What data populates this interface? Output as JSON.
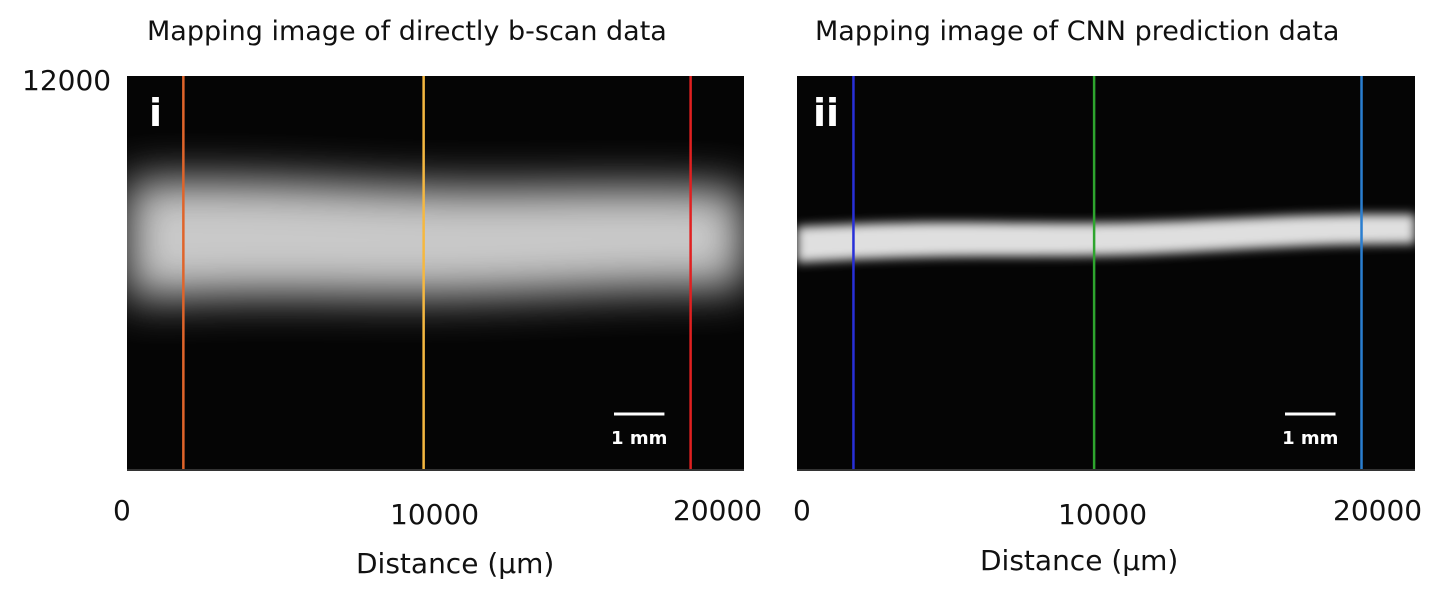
{
  "chart_data": [
    {
      "type": "heatmap",
      "title": "Mapping image of directly b-scan data",
      "panel_label": "i",
      "xlabel": "Distance (μm)",
      "ylabel": "",
      "x_ticks": [
        "0",
        "10000",
        "20000"
      ],
      "y_ticks": [
        "12000"
      ],
      "xlim": [
        0,
        20800
      ],
      "ylim": [
        0,
        12000
      ],
      "scale_bar_label": "1 mm",
      "scale_bar_length_um": 1000,
      "band": {
        "center_y": 7000,
        "half_width_start": 1800,
        "half_width_end": 1500,
        "peak_intensity": 0.95
      },
      "markers": [
        {
          "x": 1900,
          "color": "#e0642a"
        },
        {
          "x": 10000,
          "color": "#f5b840"
        },
        {
          "x": 19000,
          "color": "#e02020"
        }
      ]
    },
    {
      "type": "heatmap",
      "title": "Mapping image of CNN prediction data",
      "panel_label": "ii",
      "xlabel": "Distance (μm)",
      "ylabel": "",
      "x_ticks": [
        "0",
        "10000",
        "20000"
      ],
      "y_ticks": [],
      "xlim": [
        0,
        20800
      ],
      "ylim": [
        0,
        12000
      ],
      "scale_bar_label": "1 mm",
      "scale_bar_length_um": 1000,
      "band": {
        "center_y_start": 6850,
        "center_y_end": 7300,
        "half_width_start": 550,
        "half_width_end": 450,
        "peak_intensity": 1.0
      },
      "markers": [
        {
          "x": 1900,
          "color": "#2830d8"
        },
        {
          "x": 10000,
          "color": "#2ea52e"
        },
        {
          "x": 19000,
          "color": "#2a7ed0"
        }
      ]
    }
  ]
}
